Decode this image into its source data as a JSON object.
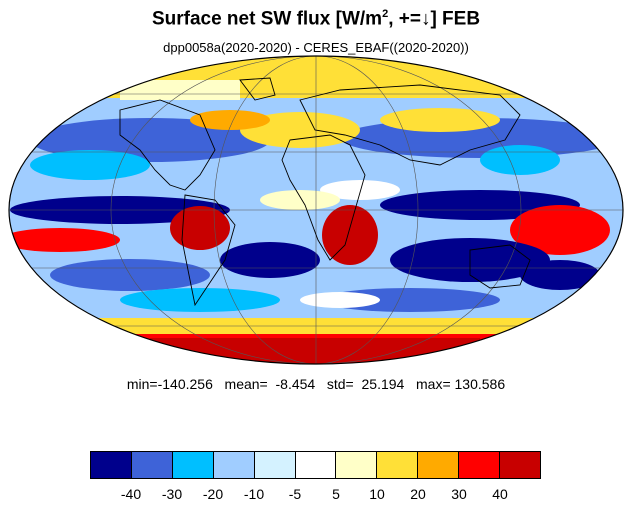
{
  "title": {
    "main": "Surface net SW flux [W/m",
    "sup": "2",
    "rest": ", +=↓]  FEB"
  },
  "subtitle": "dpp0058a(2020-2020) - CERES_EBAF((2020-2020))",
  "stats": "min=-140.256   mean=  -8.454   std=  25.194   max= 130.586",
  "colorbar": {
    "colors": [
      "#00008c",
      "#3e63d8",
      "#00bfff",
      "#a0cdff",
      "#d4f2ff",
      "#ffffff",
      "#ffffc8",
      "#ffe037",
      "#ffaa00",
      "#ff0000",
      "#c80000"
    ],
    "labels": [
      "-40",
      "-30",
      "-20",
      "-10",
      "-5",
      "5",
      "10",
      "20",
      "30",
      "40"
    ]
  },
  "map": {
    "projection": "mollweide",
    "background_color": "#ffffff"
  }
}
